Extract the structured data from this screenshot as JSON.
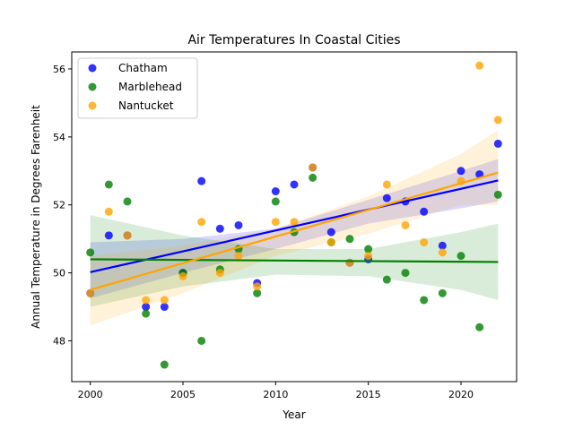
{
  "chart_data": {
    "type": "scatter",
    "title": "Air Temperatures In Coastal Cities",
    "xlabel": "Year",
    "ylabel": "Annual Temperature in Degrees Farenheit",
    "xlim": [
      1999,
      2023
    ],
    "ylim": [
      46.8,
      56.5
    ],
    "xticks": [
      2000,
      2005,
      2010,
      2015,
      2020
    ],
    "yticks": [
      48,
      50,
      52,
      54,
      56
    ],
    "grid": false,
    "legend_position": "top-left",
    "series": [
      {
        "name": "Chatham",
        "color": "#0000ff",
        "points": [
          [
            2000,
            49.4
          ],
          [
            2001,
            51.1
          ],
          [
            2002,
            51.1
          ],
          [
            2003,
            49.0
          ],
          [
            2004,
            49.0
          ],
          [
            2005,
            50.0
          ],
          [
            2006,
            52.7
          ],
          [
            2007,
            51.3
          ],
          [
            2008,
            51.4
          ],
          [
            2009,
            49.7
          ],
          [
            2010,
            52.4
          ],
          [
            2011,
            52.6
          ],
          [
            2012,
            53.1
          ],
          [
            2013,
            51.2
          ],
          [
            2014,
            50.3
          ],
          [
            2015,
            50.4
          ],
          [
            2016,
            52.2
          ],
          [
            2017,
            52.1
          ],
          [
            2018,
            51.8
          ],
          [
            2019,
            50.8
          ],
          [
            2020,
            53.0
          ],
          [
            2021,
            52.9
          ],
          [
            2022,
            53.8
          ]
        ],
        "trend": [
          [
            2000,
            50.02
          ],
          [
            2022,
            52.72
          ]
        ],
        "ci_upper": [
          [
            2000,
            50.9
          ],
          [
            2005,
            51.0
          ],
          [
            2010,
            51.3
          ],
          [
            2015,
            52.15
          ],
          [
            2020,
            53.0
          ],
          [
            2022,
            53.35
          ]
        ],
        "ci_lower": [
          [
            2000,
            49.25
          ],
          [
            2005,
            50.0
          ],
          [
            2010,
            50.7
          ],
          [
            2015,
            51.45
          ],
          [
            2020,
            51.9
          ],
          [
            2022,
            52.1
          ]
        ]
      },
      {
        "name": "Marblehead",
        "color": "#008000",
        "points": [
          [
            2000,
            50.6
          ],
          [
            2001,
            52.6
          ],
          [
            2002,
            52.1
          ],
          [
            2003,
            48.8
          ],
          [
            2004,
            47.3
          ],
          [
            2005,
            50.0
          ],
          [
            2006,
            48.0
          ],
          [
            2007,
            50.1
          ],
          [
            2008,
            50.7
          ],
          [
            2009,
            49.4
          ],
          [
            2010,
            52.1
          ],
          [
            2011,
            51.2
          ],
          [
            2012,
            52.8
          ],
          [
            2013,
            50.9
          ],
          [
            2014,
            51.0
          ],
          [
            2015,
            50.7
          ],
          [
            2016,
            49.8
          ],
          [
            2017,
            50.0
          ],
          [
            2018,
            49.2
          ],
          [
            2019,
            49.4
          ],
          [
            2020,
            50.5
          ],
          [
            2021,
            48.4
          ],
          [
            2022,
            52.3
          ]
        ],
        "trend": [
          [
            2000,
            50.4
          ],
          [
            2022,
            50.32
          ]
        ],
        "ci_upper": [
          [
            2000,
            51.7
          ],
          [
            2005,
            51.1
          ],
          [
            2010,
            50.7
          ],
          [
            2015,
            50.7
          ],
          [
            2020,
            51.2
          ],
          [
            2022,
            51.45
          ]
        ],
        "ci_lower": [
          [
            2000,
            49.0
          ],
          [
            2005,
            49.6
          ],
          [
            2010,
            49.95
          ],
          [
            2015,
            49.9
          ],
          [
            2020,
            49.5
          ],
          [
            2022,
            49.2
          ]
        ]
      },
      {
        "name": "Nantucket",
        "color": "#ffa500",
        "points": [
          [
            2000,
            49.4
          ],
          [
            2001,
            51.8
          ],
          [
            2002,
            51.1
          ],
          [
            2003,
            49.2
          ],
          [
            2004,
            49.2
          ],
          [
            2005,
            49.9
          ],
          [
            2006,
            51.5
          ],
          [
            2007,
            50.0
          ],
          [
            2008,
            50.5
          ],
          [
            2009,
            49.6
          ],
          [
            2010,
            51.5
          ],
          [
            2011,
            51.5
          ],
          [
            2012,
            53.1
          ],
          [
            2013,
            50.9
          ],
          [
            2014,
            50.3
          ],
          [
            2015,
            50.5
          ],
          [
            2016,
            52.6
          ],
          [
            2017,
            51.4
          ],
          [
            2018,
            50.9
          ],
          [
            2019,
            50.6
          ],
          [
            2020,
            52.7
          ],
          [
            2021,
            56.1
          ],
          [
            2022,
            54.5
          ]
        ],
        "trend": [
          [
            2000,
            49.5
          ],
          [
            2022,
            52.95
          ]
        ],
        "ci_upper": [
          [
            2000,
            50.5
          ],
          [
            2005,
            50.8
          ],
          [
            2010,
            51.3
          ],
          [
            2015,
            52.25
          ],
          [
            2020,
            53.5
          ],
          [
            2022,
            54.2
          ]
        ],
        "ci_lower": [
          [
            2000,
            48.45
          ],
          [
            2005,
            49.4
          ],
          [
            2010,
            50.5
          ],
          [
            2015,
            51.15
          ],
          [
            2020,
            52.0
          ],
          [
            2022,
            52.0
          ]
        ]
      }
    ]
  }
}
